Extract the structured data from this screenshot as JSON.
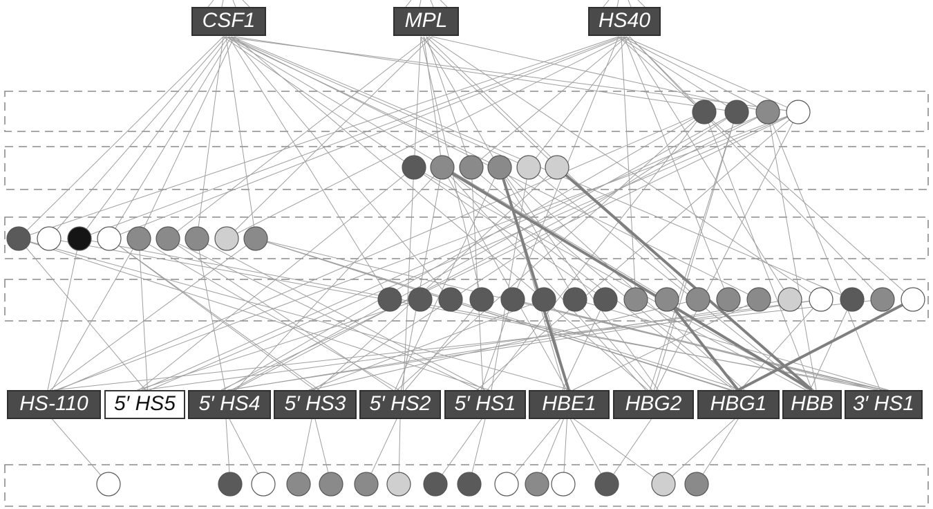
{
  "colors": {
    "background": "#ffffff",
    "edge": "#9e9e9e",
    "highlight_edge": "#7f7f7f",
    "band_border": "#8a8a8a",
    "label_fill": "#4a4a4a",
    "label_text": "#ffffff",
    "circle_stroke": "#555555",
    "levels": {
      "black": "#151515",
      "dark": "#5a5a5a",
      "medium": "#8a8a8a",
      "light": "#cfcfcf",
      "white": "#ffffff"
    }
  },
  "top_labels": [
    "CSF1",
    "MPL",
    "HS40"
  ],
  "bottom_labels": [
    {
      "text": "HS-110",
      "style": "dark"
    },
    {
      "text": "5′ HS5",
      "style": "inverse"
    },
    {
      "text": "5′ HS4",
      "style": "dark"
    },
    {
      "text": "5′ HS3",
      "style": "dark"
    },
    {
      "text": "5′ HS2",
      "style": "dark"
    },
    {
      "text": "5′ HS1",
      "style": "dark"
    },
    {
      "text": "HBE1",
      "style": "dark"
    },
    {
      "text": "HBG2",
      "style": "dark"
    },
    {
      "text": "HBG1",
      "style": "dark"
    },
    {
      "text": "HBB",
      "style": "dark"
    },
    {
      "text": "3′ HS1",
      "style": "dark"
    }
  ],
  "bands": [
    {
      "id": "band-1",
      "circles": [
        "dark",
        "dark",
        "medium",
        "white"
      ]
    },
    {
      "id": "band-2",
      "circles": [
        "dark",
        "medium",
        "medium",
        "medium",
        "light",
        "light"
      ]
    },
    {
      "id": "band-3",
      "circles": [
        "dark",
        "white",
        "black",
        "white",
        "medium",
        "medium",
        "medium",
        "light",
        "medium"
      ]
    },
    {
      "id": "band-4",
      "circles": [
        "dark",
        "dark",
        "dark",
        "dark",
        "dark",
        "dark",
        "dark",
        "dark",
        "medium",
        "medium",
        "medium",
        "medium",
        "medium",
        "light",
        "white",
        "dark",
        "medium",
        "white"
      ]
    },
    {
      "id": "band-5",
      "circles": [
        "white",
        "dark",
        "white",
        "medium",
        "medium",
        "medium",
        "light",
        "dark",
        "dark",
        "white",
        "medium",
        "white",
        "dark",
        "light",
        "medium"
      ]
    }
  ]
}
